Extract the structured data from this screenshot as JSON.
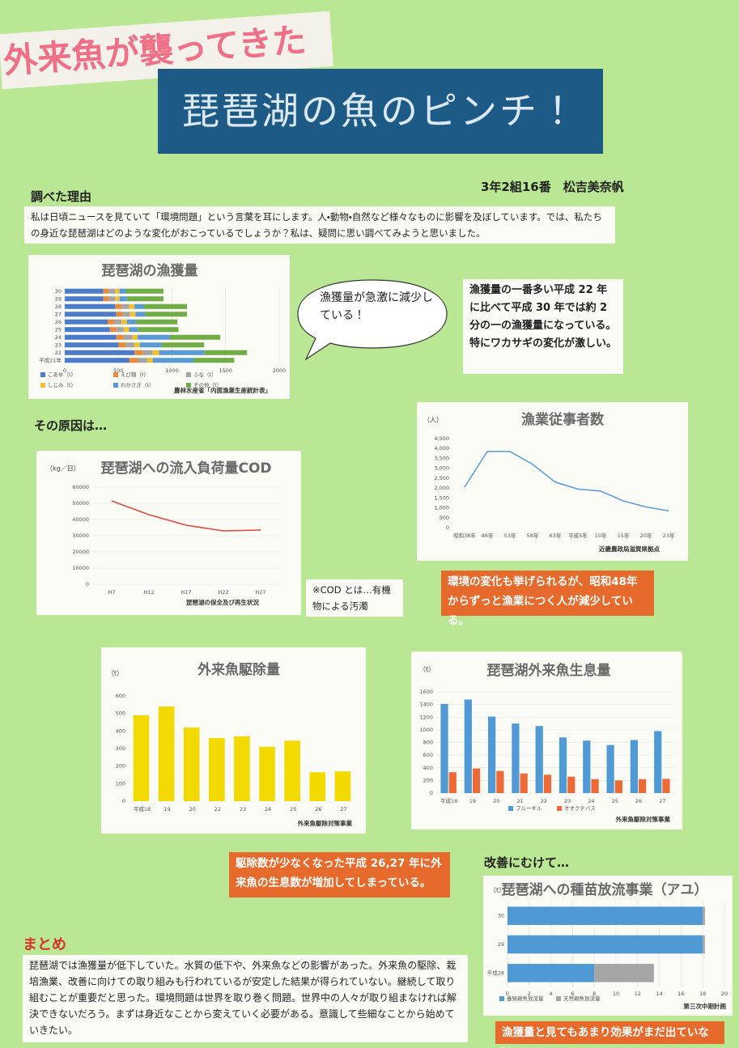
{
  "subtitle": "外来魚が襲ってきた",
  "title": "琵琶湖の魚のピンチ！",
  "author": "3年2組16番　松吉美奈帆",
  "reason": {
    "heading": "調べた理由",
    "text": "私は日頃ニュースを見ていて「環境問題」という言葉を耳にします。人・動物・自然など様々なものに影響を及ぼしています。では、私たちの身近な琵琶湖はどのような変化がおこっているでしょうか？私は、疑問に思い調べてみようと思いました。"
  },
  "bubble": "漁獲量が急激に減少している！",
  "catch_note": "漁獲量の一番多い平成 22 年に比べて平成 30 年では約 2 分の一の漁獲量になっている。特にワカサギの変化が激しい。",
  "cause_heading": "その原因は…",
  "cod_note": "※COD とは…有機物による汚濁",
  "workers_note": "環境の変化も挙げられるが、昭和48年からずっと漁業につく人が減少している。",
  "removal_note": "駆除数が少なくなった平成 26,27 年に外来魚の生息数が増加してしまっている。",
  "improve_heading": "改善にむけて…",
  "release_note": "漁獲量と見てもあまり効果がまだ出ていない。",
  "summary": {
    "heading": "まとめ",
    "text": "琵琶湖では漁獲量が低下していた。水質の低下や、外来魚などの影響があった。外来魚の駆除、栽培漁業、改善に向けての取り組みも行われているが安定した結果が得られていない。継続して取り組むことが重要だと思った。環境問題は世界を取り巻く問題。世界中の人々が取り組まなければ解決できないだろう。まずは身近なことから変えていく必要がある。意識して些細なことから始めていきたい。"
  },
  "chart_data": [
    {
      "type": "barh",
      "title": "琵琶湖の漁獲量",
      "source": "農林水産省「内面漁業生産統計表」",
      "categories": [
        "平成21年",
        "22",
        "23",
        "24",
        "25",
        "26",
        "27",
        "28",
        "29",
        "30"
      ],
      "series": [
        {
          "name": "こあゆ（t）",
          "color": "#4a7cc9",
          "values": [
            600,
            650,
            500,
            480,
            420,
            400,
            480,
            470,
            360,
            360
          ]
        },
        {
          "name": "えび類（t）",
          "color": "#ec8a3c",
          "values": [
            80,
            80,
            70,
            70,
            60,
            60,
            60,
            60,
            50,
            50
          ]
        },
        {
          "name": "ふな（t）",
          "color": "#a5a5a5",
          "values": [
            90,
            90,
            80,
            80,
            70,
            70,
            70,
            70,
            60,
            60
          ]
        },
        {
          "name": "しじみ（t）",
          "color": "#f2c12e",
          "values": [
            50,
            60,
            50,
            50,
            50,
            50,
            50,
            50,
            40,
            40
          ]
        },
        {
          "name": "わかさぎ（t）",
          "color": "#5b9bd5",
          "values": [
            380,
            420,
            200,
            300,
            80,
            80,
            90,
            90,
            70,
            60
          ]
        },
        {
          "name": "その他（t）",
          "color": "#70ad47",
          "values": [
            380,
            400,
            400,
            470,
            380,
            390,
            390,
            400,
            340,
            350
          ]
        }
      ],
      "xlim": [
        0,
        2000
      ],
      "xticks": [
        0,
        500,
        1000,
        1500,
        2000
      ],
      "grid": true,
      "legend": "bottom"
    },
    {
      "type": "line",
      "title": "琵琶湖への流入負荷量COD",
      "y_label": "（kg／日）",
      "source": "琵琶湖の保全及び再生状況",
      "categories": [
        "H7",
        "H12",
        "H17",
        "H22",
        "H27"
      ],
      "series": [
        {
          "name": null,
          "color": "#e0463a",
          "values": [
            51500,
            43000,
            36500,
            33000,
            33500
          ]
        }
      ],
      "ylim": [
        0,
        60000
      ],
      "yticks": [
        0,
        10000,
        20000,
        30000,
        40000,
        50000,
        60000
      ],
      "grid": true
    },
    {
      "type": "line",
      "title": "漁業従事者数",
      "y_label": "（人）",
      "source": "近畿農政局滋賀県拠点",
      "categories": [
        "昭和38年",
        "48年",
        "53年",
        "58年",
        "63年",
        "平成5年",
        "10年",
        "15年",
        "20年",
        "23年"
      ],
      "series": [
        {
          "name": null,
          "color": "#5b9bd5",
          "values": [
            2050,
            3850,
            3850,
            3200,
            2300,
            1950,
            1850,
            1350,
            1050,
            850
          ]
        }
      ],
      "ylim": [
        0,
        4500
      ],
      "yticks": [
        0,
        500,
        {
          "value": 1000,
          "label": "1,000"
        },
        {
          "value": 1500,
          "label": "1,500"
        },
        {
          "value": 2000,
          "label": "2,000"
        },
        {
          "value": 2500,
          "label": "2,500"
        },
        {
          "value": 3000,
          "label": "3,000"
        },
        {
          "value": 3500,
          "label": "3,500"
        },
        {
          "value": 4000,
          "label": "4,000"
        },
        {
          "value": 4500,
          "label": "4,500"
        }
      ],
      "grid": false
    },
    {
      "type": "bar",
      "title": "外来魚駆除量",
      "y_label": "（t）",
      "source": "外来魚駆除対策事業",
      "categories": [
        "平成18",
        "19",
        "20",
        "22",
        "23",
        "24",
        "25",
        "26",
        "27"
      ],
      "series": [
        {
          "name": null,
          "color": "#f2da00",
          "values": [
            490,
            540,
            420,
            360,
            370,
            310,
            345,
            165,
            170
          ]
        }
      ],
      "ylim": [
        0,
        600
      ],
      "yticks": [
        0,
        100,
        200,
        300,
        400,
        500,
        600
      ],
      "grid": false
    },
    {
      "type": "bar",
      "title": "琵琶湖外来魚生息量",
      "y_label": "（t）",
      "source": "外来魚駆除対策事業",
      "categories": [
        "平成18",
        "19",
        "20",
        "21",
        "22",
        "23",
        "24",
        "25",
        "26",
        "27"
      ],
      "series": [
        {
          "name": "ブルーギル",
          "color": "#4f9ad4",
          "values": [
            1410,
            1480,
            1210,
            1100,
            1060,
            880,
            830,
            760,
            840,
            980
          ]
        },
        {
          "name": "オオクチバス",
          "color": "#ec6a35",
          "values": [
            330,
            390,
            350,
            310,
            290,
            260,
            220,
            200,
            220,
            225
          ]
        }
      ],
      "ylim": [
        0,
        1600
      ],
      "yticks": [
        0,
        200,
        400,
        600,
        800,
        1000,
        1200,
        1400,
        1600
      ],
      "grid": true,
      "legend": "bottom"
    },
    {
      "type": "barh",
      "title": "琵琶湖への種苗放流事業（アユ）",
      "y_label": "（t）",
      "source": "第三次中期計画",
      "categories": [
        "平成28",
        "29",
        "30"
      ],
      "series": [
        {
          "name": "養殖親魚放流量",
          "color": "#4f9ad4",
          "values": [
            8,
            18,
            18
          ]
        },
        {
          "name": "天然親魚放流量",
          "color": "#a5a5a5",
          "values": [
            5.5,
            0.2,
            0.2
          ]
        }
      ],
      "xlim": [
        0,
        20
      ],
      "xticks": [
        0,
        2,
        4,
        6,
        8,
        10,
        12,
        14,
        16,
        18,
        20
      ],
      "grid": true,
      "legend": "bottom"
    }
  ]
}
